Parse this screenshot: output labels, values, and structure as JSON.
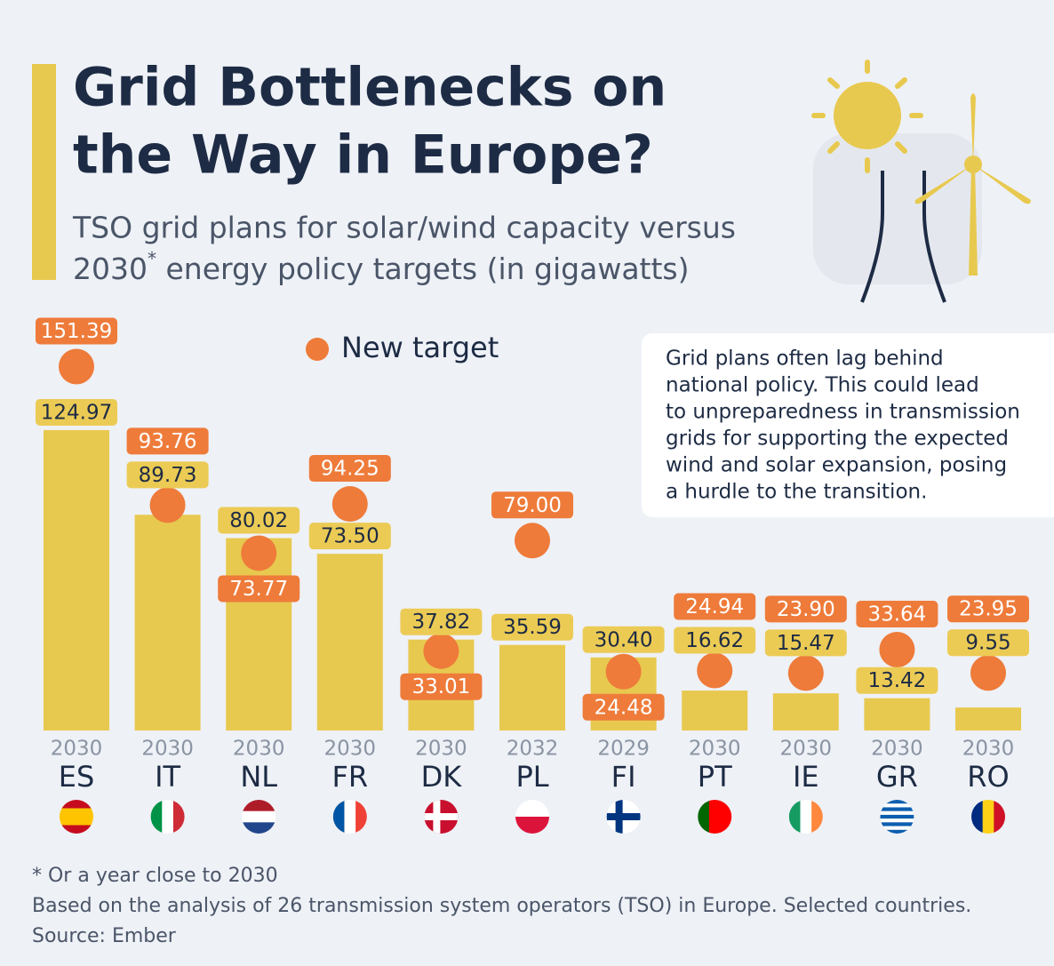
{
  "chart_data": {
    "type": "bar",
    "title": [
      "Grid Bottlenecks on",
      "the Way in Europe?"
    ],
    "subtitle": [
      "TSO grid plans for solar/wind capacity versus",
      "2030",
      "*",
      " energy policy targets (in gigawatts)"
    ],
    "annotation": [
      "Grid plans often lag behind",
      "national policy. This could lead",
      "to unpreparedness in transmission",
      "grids for supporting the expected",
      "wind and solar expansion, posing",
      "a hurdle to the transition."
    ],
    "categories": [
      "ES",
      "IT",
      "NL",
      "FR",
      "DK",
      "PL",
      "FI",
      "PT",
      "IE",
      "GR",
      "RO"
    ],
    "years": [
      "2030",
      "2030",
      "2030",
      "2030",
      "2030",
      "2032",
      "2029",
      "2030",
      "2030",
      "2030",
      "2030"
    ],
    "series": [
      {
        "color": "#e8c94f",
        "values": [
          124.97,
          89.73,
          80.02,
          73.5,
          37.82,
          35.59,
          30.4,
          16.62,
          15.47,
          13.42,
          9.55
        ],
        "value_labels": [
          "124.97",
          "89.73",
          "80.02",
          "73.50",
          "37.82",
          "35.59",
          "30.40",
          "16.62",
          "15.47",
          "13.42",
          "9.55"
        ]
      },
      {
        "name": "New target",
        "color": "#ee7b3a",
        "values": [
          151.39,
          93.76,
          73.77,
          94.25,
          33.01,
          79,
          24.48,
          24.94,
          23.9,
          33.64,
          23.95
        ],
        "value_labels": [
          "151.39",
          "93.76",
          "73.77",
          "94.25",
          "33.01",
          "79.00",
          "24.48",
          "24.94",
          "23.90",
          "33.64",
          "23.95"
        ]
      }
    ],
    "notes": [
      "* Or a year close to 2030",
      "Based on the analysis of 26 transmission system operators (TSO) in Europe. Selected countries.",
      "Source: Ember"
    ]
  }
}
